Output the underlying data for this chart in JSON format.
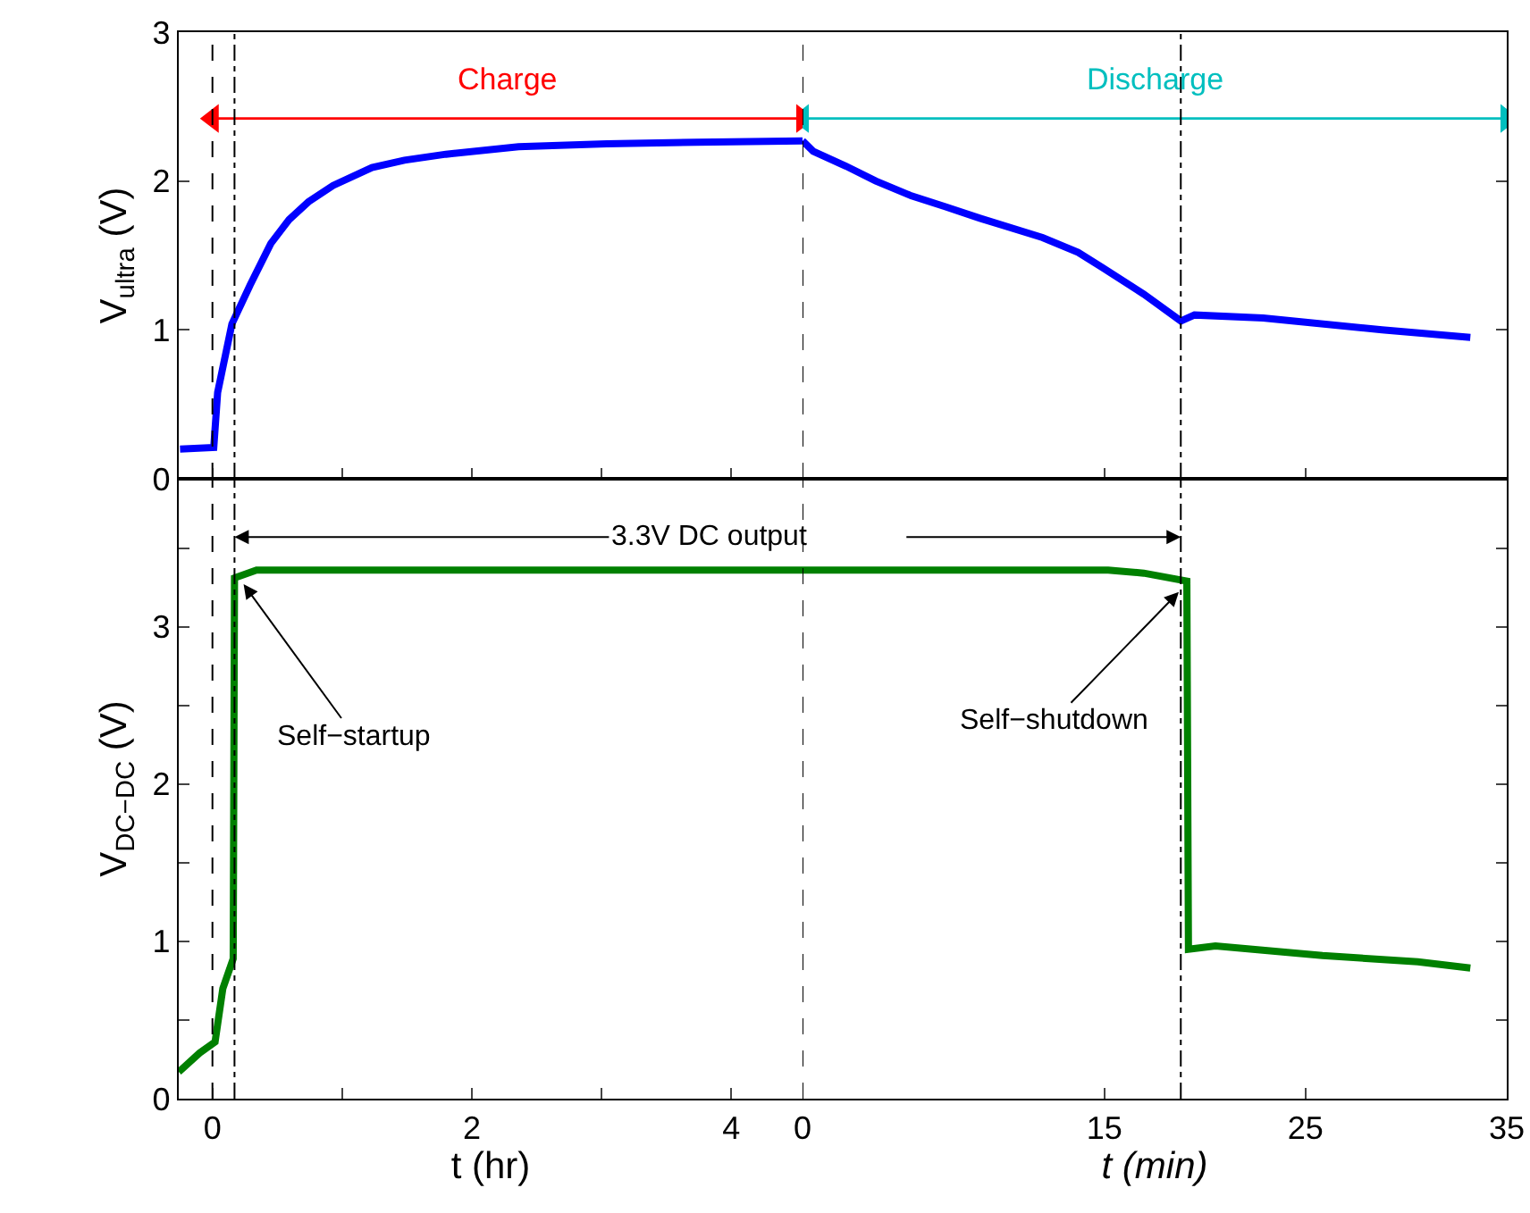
{
  "chart_data": [
    {
      "type": "line",
      "ylabel": "V$_{ultra}$ (V)",
      "xlim": [
        -0.26,
        4.55
      ],
      "xticks": [
        0,
        1,
        2,
        3,
        4
      ],
      "ylim": [
        0,
        3
      ],
      "yticks": [
        0,
        1,
        2,
        3
      ],
      "tick_labels": "y",
      "legend": false,
      "grid": false,
      "line_style": "solid",
      "marker": "none",
      "series": [
        {
          "name": "Charge",
          "color": "#ff0000",
          "marker": "triangle",
          "x": [
            0,
            4.55
          ],
          "values": [
            2.42,
            2.42
          ]
        },
        {
          "color": "#0000ff",
          "x": [
            -0.25,
            0.01,
            0.04,
            0.15,
            0.29,
            0.45,
            0.59,
            0.74,
            0.93,
            1.23,
            1.48,
            1.8,
            2.36,
            3.04,
            3.73,
            4.55
          ],
          "values": [
            0.2,
            0.21,
            0.58,
            1.04,
            1.3,
            1.58,
            1.74,
            1.86,
            1.97,
            2.09,
            2.14,
            2.18,
            2.23,
            2.25,
            2.26,
            2.27
          ]
        }
      ],
      "ref_lines": [
        {
          "axis": "x",
          "value": 0,
          "color": "#000000",
          "line_style": "dashed"
        },
        {
          "axis": "x",
          "value": 0.17,
          "color": "#000000",
          "line_style": "dotted"
        }
      ]
    },
    {
      "type": "line",
      "xlim": [
        0,
        35
      ],
      "xticks": [
        0,
        15,
        25,
        35
      ],
      "ylim": [
        0,
        3
      ],
      "yticks": [
        0,
        1,
        2,
        3
      ],
      "tick_labels": false,
      "legend": false,
      "grid": false,
      "line_style": "solid",
      "marker": "none",
      "series": [
        {
          "name": "Discharge",
          "color": "#00bfbf",
          "marker": "triangle",
          "x": [
            0,
            35
          ],
          "values": [
            2.42,
            2.42
          ]
        },
        {
          "color": "#0000ff",
          "x": [
            0,
            0.53,
            2.16,
            3.64,
            5.42,
            7.04,
            8.82,
            11.93,
            13.7,
            14.89,
            16.96,
            18.8,
            19.48,
            22.89,
            28.8,
            33.19
          ],
          "values": [
            2.27,
            2.2,
            2.1,
            2.0,
            1.9,
            1.83,
            1.75,
            1.62,
            1.52,
            1.42,
            1.24,
            1.06,
            1.1,
            1.08,
            1.0,
            0.95
          ]
        }
      ],
      "ref_lines": [
        {
          "axis": "x",
          "value": 0,
          "color": "#000000",
          "line_style": "dashed"
        },
        {
          "axis": "x",
          "value": 18.8,
          "color": "#000000",
          "line_style": "dotted"
        }
      ]
    },
    {
      "type": "line",
      "ylabel": "V$_{DC−DC}$ (V)",
      "xlabel": "t (hr)",
      "xlim": [
        -0.26,
        4.55
      ],
      "xticks": [
        0,
        {
          "value": 1,
          "label": null
        },
        2,
        {
          "value": 3,
          "label": null
        },
        4
      ],
      "ylim": [
        0,
        3.94
      ],
      "yticks": [
        0,
        {
          "value": 0.5,
          "label": null
        },
        1,
        {
          "value": 1.5,
          "label": null
        },
        2,
        {
          "value": 2.5,
          "label": null
        },
        3,
        {
          "value": 3.5,
          "label": null
        }
      ],
      "legend": false,
      "grid": false,
      "line_style": "solid",
      "marker": "none",
      "series": [
        {
          "color": "#008000",
          "x": [
            -0.26,
            -0.1,
            0.02,
            0.08,
            0.16,
            0.17,
            0.34,
            2.36,
            4.55
          ],
          "values": [
            0.17,
            0.29,
            0.36,
            0.7,
            0.89,
            3.31,
            3.36,
            3.36,
            3.36
          ]
        }
      ],
      "ref_lines": [
        {
          "axis": "x",
          "value": 0,
          "color": "#000000",
          "line_style": "dashed"
        },
        {
          "axis": "x",
          "value": 0.17,
          "color": "#000000",
          "line_style": "dotted"
        }
      ],
      "annotations": [
        {
          "text": "3.3V DC output",
          "x": 0.17,
          "y": 3.57
        },
        {
          "text": "Self−startup",
          "x": 0.24,
          "y": 3.27
        }
      ]
    },
    {
      "type": "line",
      "xlabel": "t (min)",
      "xlim": [
        0,
        35
      ],
      "xticks": [
        0,
        15,
        25,
        35
      ],
      "ylim": [
        0,
        3.94
      ],
      "yticks": [
        0,
        0.5,
        1,
        1.5,
        2,
        2.5,
        3,
        3.5
      ],
      "tick_labels": "x",
      "legend": false,
      "grid": false,
      "line_style": "solid",
      "marker": "none",
      "series": [
        {
          "color": "#008000",
          "x": [
            0,
            15.19,
            16.96,
            19.1,
            19.18,
            20.52,
            25.84,
            30.58,
            33.19
          ],
          "values": [
            3.36,
            3.36,
            3.34,
            3.29,
            0.95,
            0.97,
            0.91,
            0.87,
            0.83
          ]
        }
      ],
      "ref_lines": [
        {
          "axis": "x",
          "value": 0,
          "color": "#000000",
          "line_style": "dashed"
        },
        {
          "axis": "x",
          "value": 18.8,
          "color": "#000000",
          "line_style": "dotted"
        }
      ],
      "annotations": [
        {
          "text": "Self−shutdown",
          "x": 18.7,
          "y": 3.22
        }
      ]
    }
  ]
}
